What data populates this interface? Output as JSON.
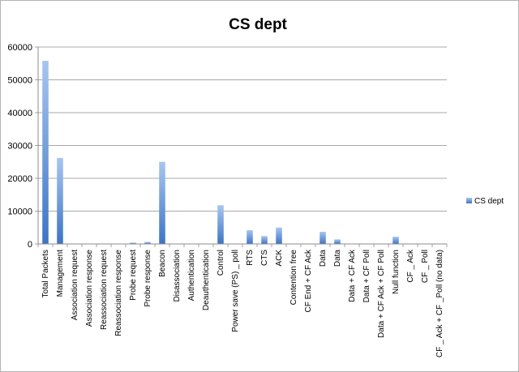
{
  "chart_data": {
    "type": "bar",
    "title": "CS dept",
    "xlabel": "",
    "ylabel": "",
    "ylim": [
      0,
      60000
    ],
    "yticks": [
      0,
      10000,
      20000,
      30000,
      40000,
      50000,
      60000
    ],
    "grid": true,
    "legend_position": "right",
    "categories": [
      "Total Packets",
      "Management",
      "Association request",
      "Association response",
      "Reassociation request",
      "Reassociation response",
      "Probe request",
      "Probe response",
      "Beacon",
      "Disassociation",
      "Authentication",
      "Deauthentication",
      "Control",
      "Power save (PS) _ poll",
      "RTS",
      "CTS",
      "ACK",
      "Contention free",
      "CF End + CF Ack",
      "Data",
      "Data",
      "Data + CF Ack",
      "Data + CF Poll",
      "Data + CF Ack + CF Poll",
      "Null function",
      "CF _ Ack",
      "CF _ Poll",
      "CF _ Ack + CF _Poll (no data)"
    ],
    "series": [
      {
        "name": "CS dept",
        "color": "#4a7ebb",
        "values": [
          55800,
          26200,
          0,
          0,
          0,
          0,
          400,
          600,
          25000,
          0,
          0,
          0,
          11800,
          0,
          4200,
          2400,
          5000,
          0,
          0,
          3700,
          1400,
          0,
          0,
          0,
          2200,
          0,
          0,
          0
        ]
      }
    ]
  }
}
